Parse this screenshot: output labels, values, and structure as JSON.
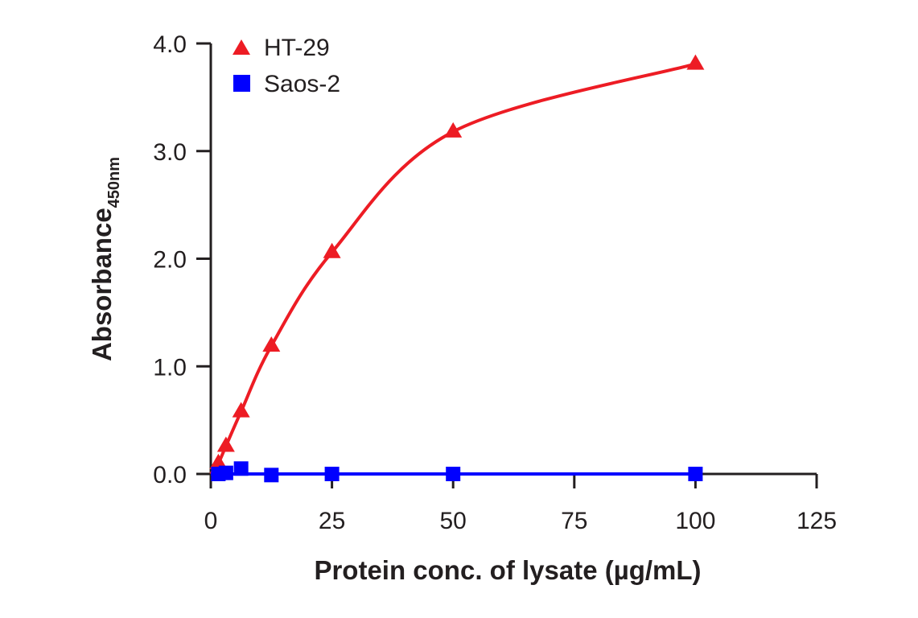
{
  "chart_data": {
    "type": "line",
    "xlabel": "Protein conc. of lysate (µg/mL)",
    "ylabel": "Absorbance",
    "ylabel_subscript": "450nm",
    "xlim": [
      0,
      125
    ],
    "ylim": [
      0,
      4.0
    ],
    "xticks": [
      0,
      25,
      50,
      75,
      100,
      125
    ],
    "xtick_labels": [
      "0",
      "25",
      "50",
      "75",
      "100",
      "125"
    ],
    "yticks": [
      0,
      1.0,
      2.0,
      3.0,
      4.0
    ],
    "ytick_labels": [
      "0.0",
      "1.0",
      "2.0",
      "3.0",
      "4.0"
    ],
    "grid": false,
    "legend_position": "top-left",
    "series": [
      {
        "name": "HT-29",
        "color": "#ed1c24",
        "marker": "triangle",
        "x": [
          1.56,
          3.13,
          6.25,
          12.5,
          25,
          50,
          100
        ],
        "y": [
          0.1,
          0.26,
          0.58,
          1.19,
          2.06,
          3.18,
          3.81
        ]
      },
      {
        "name": "Saos-2",
        "color": "#0000ff",
        "marker": "square",
        "x": [
          1.56,
          3.13,
          6.25,
          12.5,
          25,
          50,
          100
        ],
        "y": [
          0.0,
          0.01,
          0.05,
          -0.01,
          0.0,
          0.0,
          0.0
        ]
      }
    ]
  }
}
